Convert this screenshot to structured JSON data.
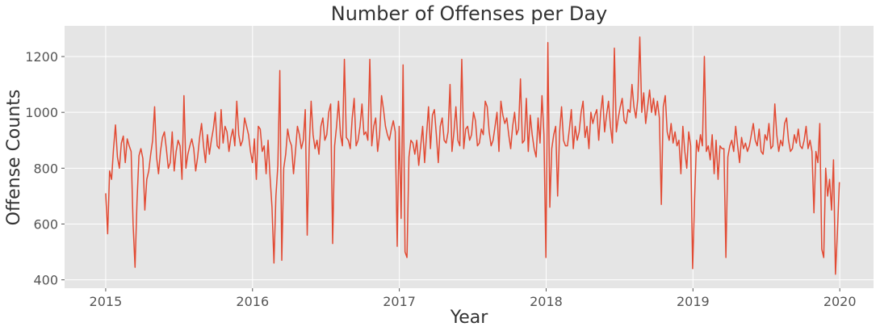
{
  "chart_data": {
    "type": "line",
    "title": "Number of Offenses per Day",
    "xlabel": "Year",
    "ylabel": "Offense Counts",
    "x_range": [
      "2015-01-01",
      "2019-12-31"
    ],
    "xlim": [
      2014.72,
      2020.23
    ],
    "ylim": [
      370,
      1310
    ],
    "x_ticks": [
      "2015",
      "2016",
      "2017",
      "2018",
      "2019",
      "2020"
    ],
    "y_ticks": [
      "400",
      "600",
      "800",
      "1000",
      "1200"
    ],
    "grid": true,
    "line_color": "#E24A33",
    "background_color": "#E5E5E5",
    "series": [
      {
        "values": [
          710,
          565,
          790,
          760,
          870,
          955,
          840,
          800,
          890,
          915,
          820,
          905,
          880,
          860,
          600,
          445,
          680,
          845,
          870,
          835,
          650,
          760,
          790,
          850,
          900,
          1020,
          840,
          780,
          860,
          910,
          930,
          870,
          800,
          820,
          930,
          790,
          860,
          900,
          880,
          760,
          1060,
          800,
          850,
          880,
          905,
          870,
          790,
          840,
          910,
          960,
          880,
          820,
          920,
          850,
          900,
          940,
          1000,
          880,
          870,
          1010,
          890,
          950,
          930,
          860,
          910,
          940,
          880,
          1040,
          920,
          880,
          900,
          980,
          950,
          920,
          860,
          820,
          905,
          760,
          950,
          940,
          860,
          880,
          780,
          900,
          770,
          660,
          460,
          700,
          810,
          1150,
          470,
          800,
          850,
          940,
          900,
          880,
          780,
          860,
          950,
          920,
          870,
          900,
          1010,
          560,
          870,
          1040,
          920,
          870,
          900,
          850,
          950,
          980,
          900,
          920,
          1000,
          1030,
          530,
          880,
          950,
          1040,
          920,
          880,
          1190,
          910,
          900,
          870,
          980,
          1050,
          880,
          900,
          950,
          1030,
          920,
          930,
          900,
          1190,
          880,
          950,
          980,
          860,
          920,
          1060,
          1010,
          950,
          920,
          900,
          940,
          970,
          930,
          520,
          950,
          620,
          1170,
          500,
          480,
          840,
          900,
          890,
          850,
          900,
          810,
          880,
          950,
          820,
          920,
          1020,
          870,
          990,
          1010,
          920,
          820,
          950,
          980,
          900,
          890,
          930,
          1100,
          860,
          930,
          1020,
          900,
          880,
          1190,
          870,
          940,
          950,
          900,
          920,
          1000,
          970,
          880,
          890,
          940,
          920,
          1040,
          1020,
          930,
          880,
          900,
          950,
          1000,
          860,
          1040,
          990,
          960,
          980,
          920,
          870,
          950,
          1000,
          920,
          940,
          1120,
          890,
          900,
          1050,
          860,
          990,
          920,
          870,
          840,
          980,
          890,
          1060,
          920,
          480,
          1250,
          660,
          870,
          920,
          950,
          700,
          930,
          1020,
          900,
          880,
          880,
          940,
          1010,
          870,
          950,
          900,
          930,
          1000,
          1040,
          910,
          950,
          870,
          1000,
          960,
          990,
          1010,
          900,
          1000,
          1060,
          930,
          990,
          1040,
          950,
          890,
          1230,
          930,
          980,
          1020,
          1050,
          970,
          960,
          1010,
          1000,
          1100,
          1020,
          980,
          1050,
          1270,
          1000,
          1070,
          960,
          1020,
          1080,
          1000,
          1050,
          990,
          1040,
          980,
          670,
          1020,
          1060,
          930,
          900,
          960,
          890,
          930,
          880,
          900,
          780,
          950,
          860,
          800,
          930,
          880,
          440,
          690,
          900,
          860,
          920,
          880,
          1200,
          860,
          880,
          830,
          920,
          780,
          900,
          760,
          880,
          870,
          870,
          480,
          840,
          880,
          900,
          860,
          950,
          880,
          820,
          910,
          870,
          890,
          860,
          880,
          920,
          960,
          900,
          880,
          940,
          860,
          850,
          920,
          900,
          960,
          870,
          880,
          1030,
          920,
          860,
          900,
          880,
          960,
          980,
          900,
          860,
          870,
          920,
          890,
          940,
          880,
          870,
          900,
          950,
          870,
          900,
          860,
          640,
          860,
          820,
          960,
          510,
          480,
          800,
          700,
          760,
          650,
          830,
          420,
          570,
          750
        ]
      }
    ]
  }
}
